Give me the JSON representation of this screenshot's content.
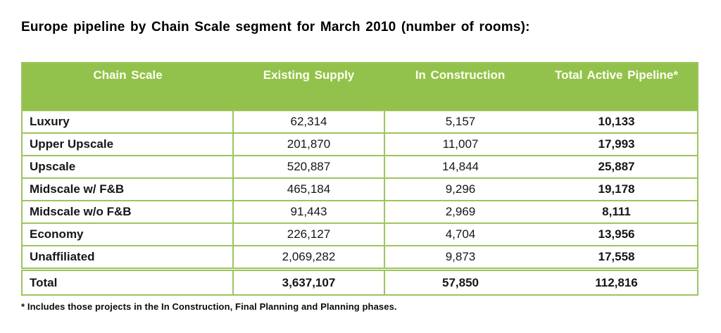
{
  "title": "Europe pipeline by Chain Scale segment for March 2010 (number of rooms):",
  "footnote": "* Includes those projects in the In Construction, Final Planning and Planning phases.",
  "colors": {
    "header_bg": "#93c24c",
    "header_text": "#fefef2",
    "table_border": "#9dc45f",
    "body_text": "#161616"
  },
  "table": {
    "headers": {
      "chain_scale": "Chain Scale",
      "existing_supply": "Existing Supply",
      "in_construction": "In Construction",
      "total_active_pipeline": "Total Active Pipeline*"
    },
    "rows": [
      {
        "label": "Luxury",
        "existing_supply": "62,314",
        "in_construction": "5,157",
        "total_active_pipeline": "10,133"
      },
      {
        "label": "Upper Upscale",
        "existing_supply": "201,870",
        "in_construction": "11,007",
        "total_active_pipeline": "17,993"
      },
      {
        "label": "Upscale",
        "existing_supply": "520,887",
        "in_construction": "14,844",
        "total_active_pipeline": "25,887"
      },
      {
        "label": "Midscale w/ F&B",
        "existing_supply": "465,184",
        "in_construction": "9,296",
        "total_active_pipeline": "19,178"
      },
      {
        "label": "Midscale w/o F&B",
        "existing_supply": "91,443",
        "in_construction": "2,969",
        "total_active_pipeline": "8,111"
      },
      {
        "label": "Economy",
        "existing_supply": "226,127",
        "in_construction": "4,704",
        "total_active_pipeline": "13,956"
      },
      {
        "label": "Unaffiliated",
        "existing_supply": "2,069,282",
        "in_construction": "9,873",
        "total_active_pipeline": "17,558"
      }
    ],
    "total_row": {
      "label": "Total",
      "existing_supply": "3,637,107",
      "in_construction": "57,850",
      "total_active_pipeline": "112,816"
    }
  },
  "chart_data": {
    "type": "table",
    "title": "Europe pipeline by Chain Scale segment for March 2010 (number of rooms)",
    "columns": [
      "Chain Scale",
      "Existing Supply",
      "In Construction",
      "Total Active Pipeline*"
    ],
    "rows": [
      [
        "Luxury",
        62314,
        5157,
        10133
      ],
      [
        "Upper Upscale",
        201870,
        11007,
        17993
      ],
      [
        "Upscale",
        520887,
        14844,
        25887
      ],
      [
        "Midscale w/ F&B",
        465184,
        9296,
        19178
      ],
      [
        "Midscale w/o F&B",
        91443,
        2969,
        8111
      ],
      [
        "Economy",
        226127,
        4704,
        13956
      ],
      [
        "Unaffiliated",
        2069282,
        9873,
        17558
      ],
      [
        "Total",
        3637107,
        57850,
        112816
      ]
    ],
    "footnote": "* Includes those projects in the In Construction, Final Planning and Planning phases."
  }
}
